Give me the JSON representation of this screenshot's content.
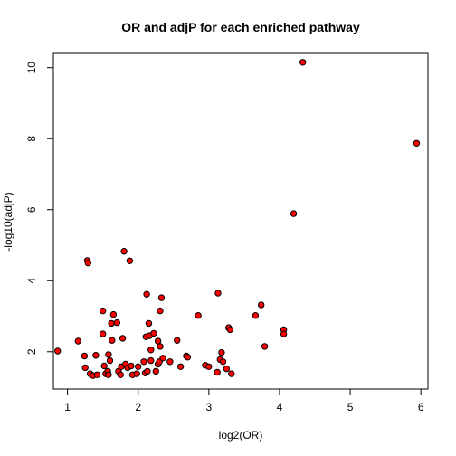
{
  "chart_data": {
    "type": "scatter",
    "title": "OR and adjP for each enriched pathway",
    "xlabel": "log2(OR)",
    "ylabel": "-log10(adjP)",
    "xlim": [
      0.8,
      6.1
    ],
    "ylim": [
      0.95,
      10.4
    ],
    "xticks": [
      1,
      2,
      3,
      4,
      5,
      6
    ],
    "yticks": [
      2,
      4,
      6,
      8,
      10
    ],
    "grid": false,
    "legend": "none",
    "point_fill": "#ff0000",
    "point_stroke": "#000000",
    "points": [
      {
        "x": 0.86,
        "y": 2.02
      },
      {
        "x": 1.15,
        "y": 2.3
      },
      {
        "x": 1.24,
        "y": 1.88
      },
      {
        "x": 1.25,
        "y": 1.55
      },
      {
        "x": 1.28,
        "y": 4.57
      },
      {
        "x": 1.29,
        "y": 4.5
      },
      {
        "x": 1.32,
        "y": 1.38
      },
      {
        "x": 1.36,
        "y": 1.33
      },
      {
        "x": 1.4,
        "y": 1.9
      },
      {
        "x": 1.42,
        "y": 1.35
      },
      {
        "x": 1.5,
        "y": 3.15
      },
      {
        "x": 1.5,
        "y": 2.5
      },
      {
        "x": 1.52,
        "y": 1.6
      },
      {
        "x": 1.54,
        "y": 1.38
      },
      {
        "x": 1.57,
        "y": 1.45
      },
      {
        "x": 1.58,
        "y": 1.35
      },
      {
        "x": 1.58,
        "y": 1.92
      },
      {
        "x": 1.6,
        "y": 1.75
      },
      {
        "x": 1.62,
        "y": 2.8
      },
      {
        "x": 1.63,
        "y": 2.32
      },
      {
        "x": 1.65,
        "y": 3.05
      },
      {
        "x": 1.7,
        "y": 2.82
      },
      {
        "x": 1.72,
        "y": 1.45
      },
      {
        "x": 1.75,
        "y": 1.35
      },
      {
        "x": 1.76,
        "y": 1.58
      },
      {
        "x": 1.78,
        "y": 2.38
      },
      {
        "x": 1.8,
        "y": 4.83
      },
      {
        "x": 1.82,
        "y": 1.65
      },
      {
        "x": 1.85,
        "y": 1.55
      },
      {
        "x": 1.88,
        "y": 4.56
      },
      {
        "x": 1.9,
        "y": 1.6
      },
      {
        "x": 1.92,
        "y": 1.35
      },
      {
        "x": 1.98,
        "y": 1.38
      },
      {
        "x": 2.0,
        "y": 1.58
      },
      {
        "x": 2.08,
        "y": 1.72
      },
      {
        "x": 2.1,
        "y": 1.4
      },
      {
        "x": 2.11,
        "y": 2.42
      },
      {
        "x": 2.12,
        "y": 3.62
      },
      {
        "x": 2.13,
        "y": 1.45
      },
      {
        "x": 2.15,
        "y": 2.8
      },
      {
        "x": 2.16,
        "y": 2.45
      },
      {
        "x": 2.18,
        "y": 1.75
      },
      {
        "x": 2.18,
        "y": 2.05
      },
      {
        "x": 2.22,
        "y": 2.52
      },
      {
        "x": 2.25,
        "y": 1.45
      },
      {
        "x": 2.28,
        "y": 2.3
      },
      {
        "x": 2.28,
        "y": 1.65
      },
      {
        "x": 2.3,
        "y": 1.72
      },
      {
        "x": 2.31,
        "y": 3.15
      },
      {
        "x": 2.31,
        "y": 2.15
      },
      {
        "x": 2.33,
        "y": 3.52
      },
      {
        "x": 2.35,
        "y": 1.82
      },
      {
        "x": 2.45,
        "y": 1.72
      },
      {
        "x": 2.55,
        "y": 2.32
      },
      {
        "x": 2.6,
        "y": 1.58
      },
      {
        "x": 2.68,
        "y": 1.88
      },
      {
        "x": 2.7,
        "y": 1.85
      },
      {
        "x": 2.85,
        "y": 3.02
      },
      {
        "x": 2.95,
        "y": 1.62
      },
      {
        "x": 3.0,
        "y": 1.58
      },
      {
        "x": 3.12,
        "y": 1.42
      },
      {
        "x": 3.13,
        "y": 3.65
      },
      {
        "x": 3.16,
        "y": 1.78
      },
      {
        "x": 3.18,
        "y": 1.98
      },
      {
        "x": 3.2,
        "y": 1.72
      },
      {
        "x": 3.25,
        "y": 1.52
      },
      {
        "x": 3.28,
        "y": 2.68
      },
      {
        "x": 3.3,
        "y": 2.62
      },
      {
        "x": 3.32,
        "y": 1.38
      },
      {
        "x": 3.66,
        "y": 3.02
      },
      {
        "x": 3.74,
        "y": 3.32
      },
      {
        "x": 3.79,
        "y": 2.15
      },
      {
        "x": 4.06,
        "y": 2.62
      },
      {
        "x": 4.06,
        "y": 2.5
      },
      {
        "x": 4.2,
        "y": 5.89
      },
      {
        "x": 4.33,
        "y": 10.15
      },
      {
        "x": 5.94,
        "y": 7.87
      }
    ]
  }
}
